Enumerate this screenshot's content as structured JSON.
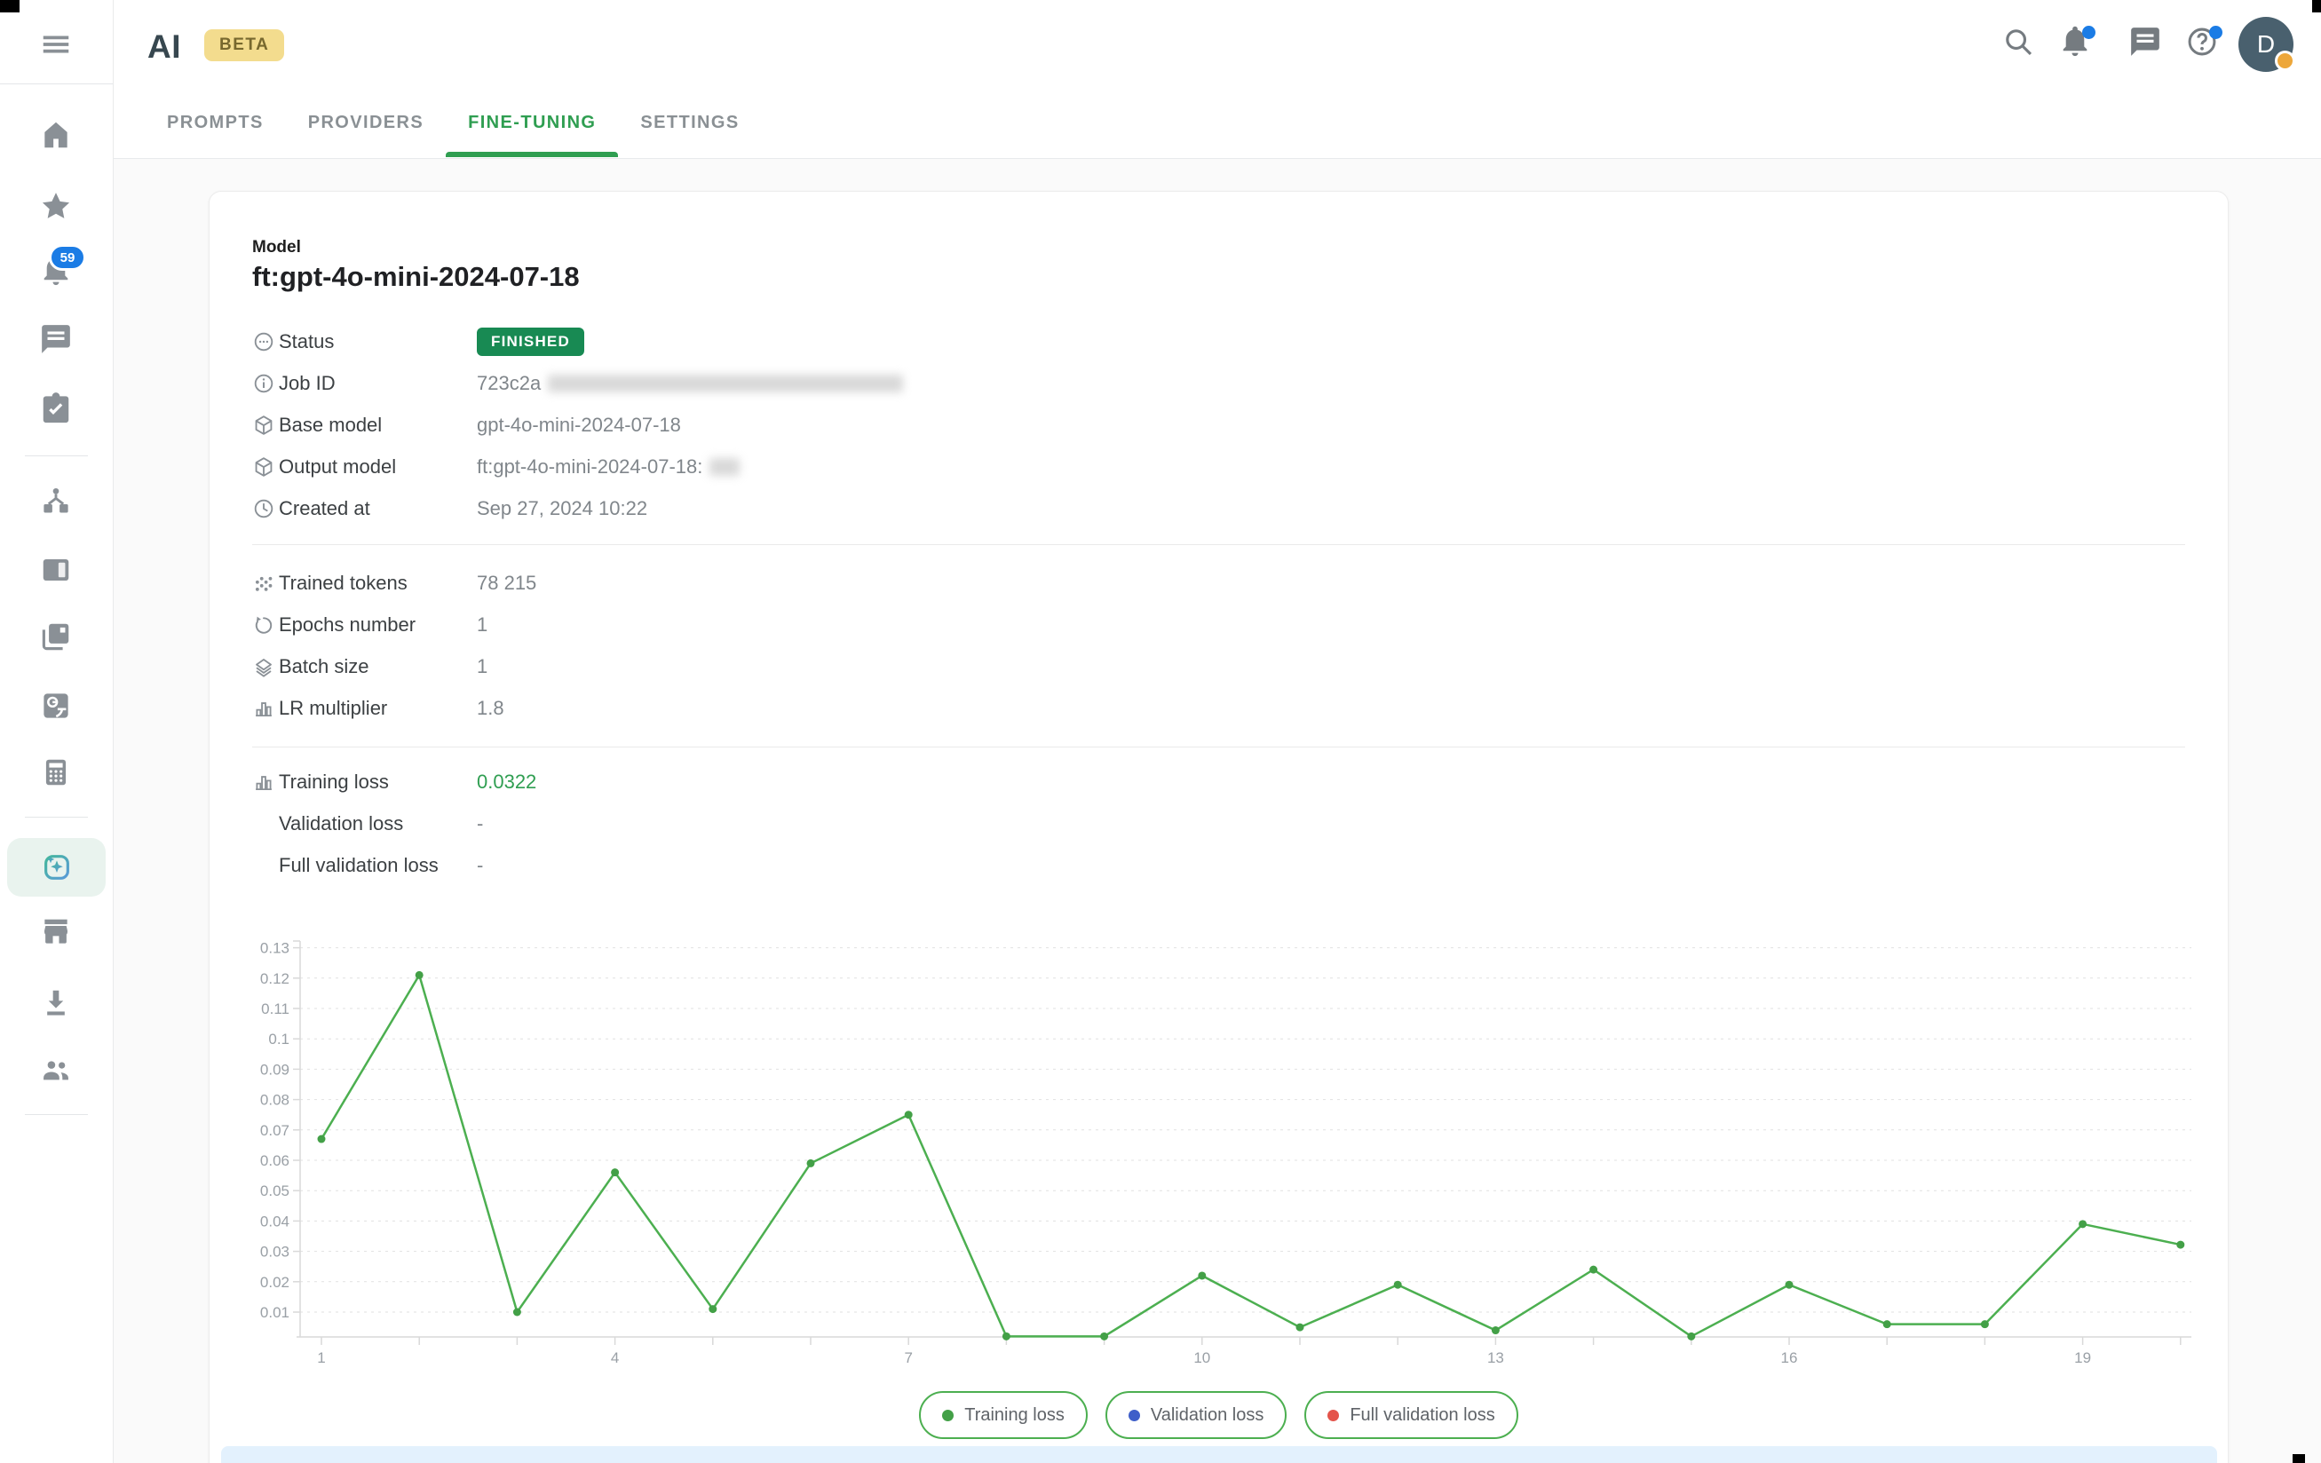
{
  "topbar": {
    "logo": "AI",
    "beta_badge": "BETA",
    "tabs": [
      {
        "label": "PROMPTS",
        "active": false
      },
      {
        "label": "PROVIDERS",
        "active": false
      },
      {
        "label": "FINE-TUNING",
        "active": true
      },
      {
        "label": "SETTINGS",
        "active": false
      }
    ],
    "icons": [
      "search",
      "notifications",
      "chat",
      "help"
    ],
    "notification_dots": {
      "notifications": true,
      "help": true
    },
    "avatar": {
      "initial": "D",
      "status_dot": true
    }
  },
  "sidebar": {
    "items": [
      {
        "icon": "home"
      },
      {
        "icon": "star"
      },
      {
        "icon": "notifications",
        "badge": "59"
      },
      {
        "icon": "chat"
      },
      {
        "icon": "tasks"
      },
      {
        "icon": "workflow"
      },
      {
        "icon": "sidepanel"
      },
      {
        "icon": "pages"
      },
      {
        "icon": "translate"
      },
      {
        "icon": "calculator"
      },
      {
        "icon": "ai-tools",
        "active": true
      },
      {
        "icon": "store"
      },
      {
        "icon": "downloads"
      },
      {
        "icon": "people"
      }
    ]
  },
  "card": {
    "section_label": "Model",
    "model_name": "ft:gpt-4o-mini-2024-07-18",
    "details": [
      {
        "icon": "status",
        "label": "Status",
        "value": "FINISHED",
        "style": "badge"
      },
      {
        "icon": "info",
        "label": "Job ID",
        "value": "723c2a",
        "style": "muted",
        "redacted": "long"
      },
      {
        "icon": "package",
        "label": "Base model",
        "value": "gpt-4o-mini-2024-07-18",
        "style": "muted"
      },
      {
        "icon": "package",
        "label": "Output model",
        "value": "ft:gpt-4o-mini-2024-07-18:",
        "style": "muted",
        "redacted": "short"
      },
      {
        "icon": "clock",
        "label": "Created at",
        "value": "Sep 27, 2024 10:22",
        "style": "muted"
      }
    ],
    "params": [
      {
        "icon": "grain",
        "label": "Trained tokens",
        "value": "78 215",
        "style": "muted"
      },
      {
        "icon": "epochs",
        "label": "Epochs number",
        "value": "1",
        "style": "muted"
      },
      {
        "icon": "layers",
        "label": "Batch size",
        "value": "1",
        "style": "muted"
      },
      {
        "icon": "chart",
        "label": "LR multiplier",
        "value": "1.8",
        "style": "muted"
      }
    ],
    "losses": [
      {
        "icon": "chart",
        "label": "Training loss",
        "value": "0.0322",
        "style": "green"
      },
      {
        "icon": "none",
        "label": "Validation loss",
        "value": "-",
        "style": "muted"
      },
      {
        "icon": "none",
        "label": "Full validation loss",
        "value": "-",
        "style": "muted"
      }
    ]
  },
  "chart_data": {
    "type": "line",
    "title": "",
    "xlabel": "",
    "ylabel": "",
    "x": [
      1,
      2,
      3,
      4,
      5,
      6,
      7,
      8,
      9,
      10,
      11,
      12,
      13,
      14,
      15,
      16,
      17,
      18,
      19,
      20
    ],
    "xticks_labeled": [
      1,
      4,
      7,
      10,
      13,
      16,
      19
    ],
    "yticks": [
      0.01,
      0.02,
      0.03,
      0.04,
      0.05,
      0.06,
      0.07,
      0.08,
      0.09,
      0.1,
      0.11,
      0.12,
      0.13
    ],
    "ylim": [
      0.0018,
      0.134
    ],
    "grid": "horizontal-dashed",
    "legend_position": "bottom",
    "series": [
      {
        "name": "Training loss",
        "color": "#43a047",
        "line_color": "#4caf50",
        "values": [
          0.067,
          0.121,
          0.01,
          0.056,
          0.011,
          0.059,
          0.075,
          0.002,
          0.002,
          0.022,
          0.005,
          0.019,
          0.004,
          0.024,
          0.002,
          0.019,
          0.006,
          0.006,
          0.039,
          0.0322
        ]
      },
      {
        "name": "Validation loss",
        "color": "#3f5fc9",
        "values": []
      },
      {
        "name": "Full validation loss",
        "color": "#e4544b",
        "values": []
      }
    ]
  },
  "colors": {
    "accent_green": "#2f9e51",
    "finished_badge": "#188a53",
    "notification_blue": "#1b7ce5",
    "beta_bg": "#f3dc8e",
    "alert_bar_bg": "#e3f1fd",
    "active_item_bg": "#e9f3ee"
  }
}
